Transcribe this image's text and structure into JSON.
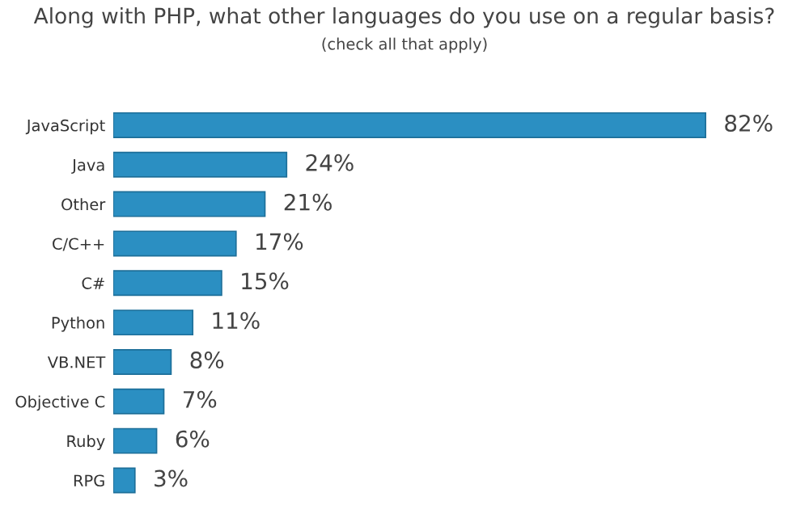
{
  "chart_data": {
    "type": "bar",
    "orientation": "horizontal",
    "title": "Along with PHP, what other languages do you use on a regular basis?",
    "subtitle": "(check all that apply)",
    "categories": [
      "JavaScript",
      "Java",
      "Other",
      "C/C++",
      "C#",
      "Python",
      "VB.NET",
      "Objective C",
      "Ruby",
      "RPG"
    ],
    "values": [
      82,
      24,
      21,
      17,
      15,
      11,
      8,
      7,
      6,
      3
    ],
    "value_labels": [
      "82%",
      "24%",
      "21%",
      "17%",
      "15%",
      "11%",
      "8%",
      "7%",
      "6%",
      "3%"
    ],
    "color": "#2b8fc2"
  }
}
